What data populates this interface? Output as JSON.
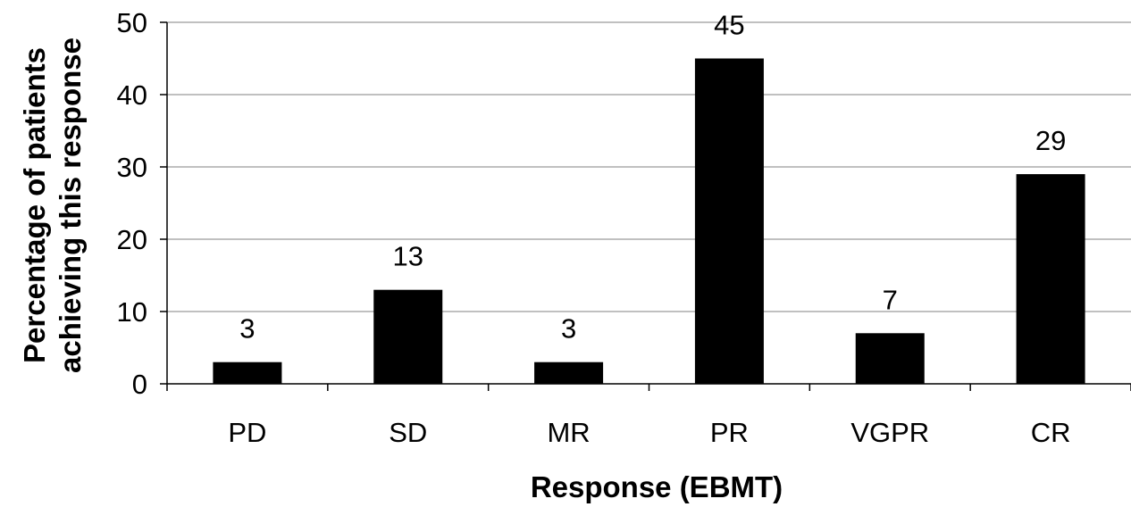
{
  "chart_data": {
    "type": "bar",
    "categories": [
      "PD",
      "SD",
      "MR",
      "PR",
      "VGPR",
      "CR"
    ],
    "values": [
      3,
      13,
      3,
      45,
      7,
      29
    ],
    "data_labels": [
      "3",
      "13",
      "3",
      "45",
      "7",
      "29"
    ],
    "title": "",
    "xlabel": "Response (EBMT)",
    "ylabel_lines": [
      "Percentage of patients",
      "achieving this response"
    ],
    "ylim": [
      0,
      50
    ],
    "yticks": [
      0,
      10,
      20,
      30,
      40,
      50
    ],
    "ytick_labels": [
      "0",
      "10",
      "20",
      "30",
      "40",
      "50"
    ],
    "grid": true,
    "legend": "none",
    "bar_color": "#000000",
    "grid_color": "#808080"
  }
}
